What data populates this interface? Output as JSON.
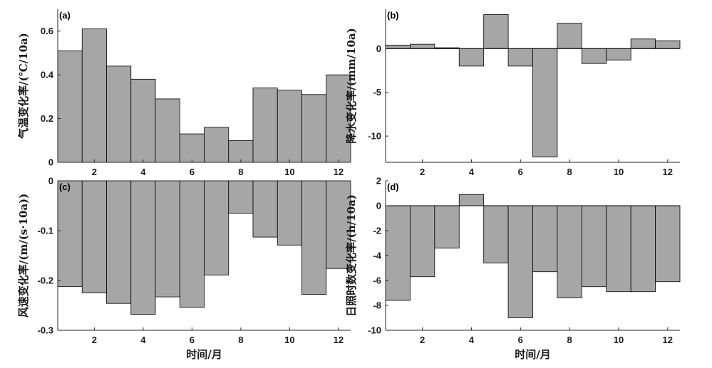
{
  "chart_data": [
    {
      "panel": "(a)",
      "type": "bar",
      "ylabel": "气温变化率/(℃/10a)",
      "xlabel": "",
      "categories": [
        1,
        2,
        3,
        4,
        5,
        6,
        7,
        8,
        9,
        10,
        11,
        12
      ],
      "values": [
        0.51,
        0.61,
        0.44,
        0.38,
        0.29,
        0.13,
        0.16,
        0.1,
        0.34,
        0.33,
        0.31,
        0.4
      ],
      "ylim": [
        0,
        0.7
      ],
      "yticks": [
        0,
        0.2,
        0.4,
        0.6
      ],
      "ytick_labels": [
        "0",
        "0.2",
        "0.4",
        "0.6"
      ],
      "xticks": [
        2,
        4,
        6,
        8,
        10,
        12
      ]
    },
    {
      "panel": "(b)",
      "type": "bar",
      "ylabel": "降水变化率/(mm/10a)",
      "xlabel": "",
      "categories": [
        1,
        2,
        3,
        4,
        5,
        6,
        7,
        8,
        9,
        10,
        11,
        12
      ],
      "values": [
        0.4,
        0.5,
        0.1,
        -2.0,
        3.9,
        -2.0,
        -12.4,
        2.9,
        -1.7,
        -1.3,
        1.1,
        0.9
      ],
      "ylim": [
        -13,
        4.5
      ],
      "yticks": [
        -10,
        -5,
        0
      ],
      "ytick_labels": [
        "-10",
        "-5",
        "0"
      ],
      "xticks": [
        2,
        4,
        6,
        8,
        10,
        12
      ]
    },
    {
      "panel": "(c)",
      "type": "bar",
      "ylabel": "风速变化率/(m/(s·10a))",
      "xlabel": "时间/月",
      "categories": [
        1,
        2,
        3,
        4,
        5,
        6,
        7,
        8,
        9,
        10,
        11,
        12
      ],
      "values": [
        -0.212,
        -0.225,
        -0.246,
        -0.268,
        -0.233,
        -0.254,
        -0.189,
        -0.065,
        -0.113,
        -0.129,
        -0.228,
        -0.176
      ],
      "ylim": [
        -0.3,
        0
      ],
      "yticks": [
        -0.3,
        -0.2,
        -0.1,
        0
      ],
      "ytick_labels": [
        "-0.3",
        "-0.2",
        "-0.1",
        "0"
      ],
      "xticks": [
        2,
        4,
        6,
        8,
        10,
        12
      ]
    },
    {
      "panel": "(d)",
      "type": "bar",
      "ylabel": "日照时数变化率/(h/10a)",
      "xlabel": "时间/月",
      "categories": [
        1,
        2,
        3,
        4,
        5,
        6,
        7,
        8,
        9,
        10,
        11,
        12
      ],
      "values": [
        -7.6,
        -5.7,
        -3.4,
        0.9,
        -4.6,
        -9.0,
        -5.3,
        -7.4,
        -6.5,
        -6.9,
        -6.9,
        -6.1
      ],
      "ylim": [
        -10,
        2
      ],
      "yticks": [
        -10,
        -8,
        -6,
        -4,
        -2,
        0,
        2
      ],
      "ytick_labels": [
        "-10",
        "-8",
        "-6",
        "-4",
        "-2",
        "0",
        "2"
      ],
      "xticks": [
        2,
        4,
        6,
        8,
        10,
        12
      ]
    }
  ],
  "colors": {
    "bar_fill": "#a6a6a6",
    "bar_stroke": "#000000",
    "axis": "#262626",
    "zero_line": "#000000"
  }
}
